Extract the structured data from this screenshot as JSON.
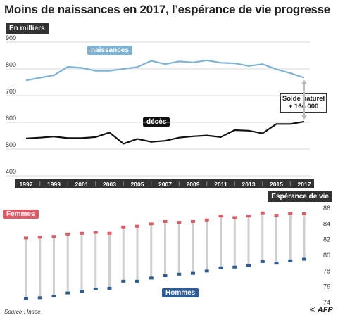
{
  "title": "Moins de naissances en 2017, l’espérance de vie progresse",
  "source": "Source : Insee",
  "credit": "© AFP",
  "colors": {
    "naissances": "#7eb3d4",
    "deces": "#111111",
    "femmes": "#e05a66",
    "hommes": "#2c5b95",
    "stem": "#cfcfcf",
    "axis_band": "#333333"
  },
  "chart_data": [
    {
      "type": "line",
      "unit_label": "En milliers",
      "x": [
        1997,
        1998,
        1999,
        2000,
        2001,
        2002,
        2003,
        2004,
        2005,
        2006,
        2007,
        2008,
        2009,
        2010,
        2011,
        2012,
        2013,
        2014,
        2015,
        2016,
        2017
      ],
      "x_tick_labels": [
        "1997",
        "1999",
        "2001",
        "2003",
        "2005",
        "2007",
        "2009",
        "2011",
        "2013",
        "2015",
        "2017"
      ],
      "ylim": [
        400,
        900
      ],
      "y_ticks": [
        "400",
        "500",
        "600",
        "700",
        "800",
        "900"
      ],
      "grid": true,
      "series": [
        {
          "name": "naissances",
          "values": [
            757,
            767,
            776,
            808,
            804,
            793,
            793,
            800,
            807,
            830,
            818,
            828,
            824,
            832,
            823,
            821,
            811,
            818,
            799,
            784,
            767
          ]
        },
        {
          "name": "décès",
          "values": [
            540,
            543,
            547,
            541,
            541,
            545,
            562,
            520,
            538,
            527,
            531,
            543,
            548,
            551,
            545,
            571,
            569,
            559,
            594,
            594,
            603
          ]
        }
      ],
      "annotation": {
        "line1": "Solde naturel",
        "line2": "+ 164 000"
      }
    },
    {
      "type": "dot",
      "title": "Espérance de vie",
      "x": [
        1997,
        1998,
        1999,
        2000,
        2001,
        2002,
        2003,
        2004,
        2005,
        2006,
        2007,
        2008,
        2009,
        2010,
        2011,
        2012,
        2013,
        2014,
        2015,
        2016,
        2017
      ],
      "ylim": [
        74,
        86
      ],
      "y_ticks": [
        "74",
        "76",
        "78",
        "80",
        "82",
        "84",
        "86"
      ],
      "series": [
        {
          "name": "Femmes",
          "values": [
            82.2,
            82.3,
            82.4,
            82.7,
            82.8,
            82.9,
            82.8,
            83.6,
            83.7,
            84.0,
            84.3,
            84.2,
            84.3,
            84.5,
            85.0,
            84.8,
            85.0,
            85.4,
            85.1,
            85.3,
            85.3
          ]
        },
        {
          "name": "Hommes",
          "values": [
            74.5,
            74.6,
            74.8,
            75.2,
            75.4,
            75.7,
            75.8,
            76.7,
            76.7,
            77.1,
            77.4,
            77.6,
            77.7,
            78.0,
            78.4,
            78.5,
            78.7,
            79.2,
            79.0,
            79.3,
            79.5
          ]
        }
      ]
    }
  ]
}
